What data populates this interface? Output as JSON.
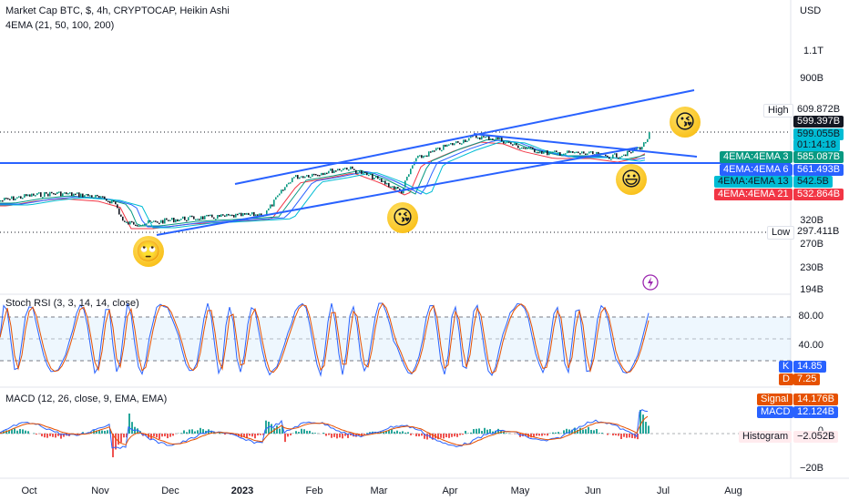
{
  "header": {
    "title": "Market Cap BTC, $, 4h, CRYPTOCAP, Heikin Ashi",
    "indicator": "4EMA (21, 50, 100, 200)",
    "currency": "USD"
  },
  "price_axis": {
    "ticks": [
      "1.1T",
      "900B",
      "320B",
      "270B",
      "230B",
      "194B"
    ],
    "high_label": "High",
    "high_value": "609.872B",
    "low_label": "Low",
    "low_value": "297.411B",
    "last_price": "599.397B",
    "last_price2": "599.055B",
    "countdown": "01:14:18",
    "ema_labels": [
      {
        "name": "4EMA:4EMA 3",
        "value": "585.087B",
        "color": "#089981"
      },
      {
        "name": "4EMA:4EMA 6",
        "value": "561.493B",
        "color": "#2962ff"
      },
      {
        "name": "4EMA:4EMA 13",
        "value": "542.5B",
        "color": "#00bcd4"
      },
      {
        "name": "4EMA:4EMA 21",
        "value": "532.864B",
        "color": "#f23645"
      }
    ]
  },
  "stoch": {
    "title": "Stoch RSI (3, 3, 14, 14, close)",
    "ticks": [
      "80.00",
      "40.00"
    ],
    "k_label": "K",
    "k_value": "14.85",
    "d_label": "D",
    "d_value": "7.25"
  },
  "macd": {
    "title": "MACD (12, 26, close, 9, EMA, EMA)",
    "signal_label": "Signal",
    "signal_value": "14.176B",
    "macd_label": "MACD",
    "macd_value": "12.124B",
    "hist_label": "Histogram",
    "hist_value": "−2.052B",
    "ticks": [
      "0",
      "−20B"
    ]
  },
  "time_axis": [
    "Oct",
    "Nov",
    "Dec",
    "2023",
    "Feb",
    "Mar",
    "Apr",
    "May",
    "Jun",
    "Jul",
    "Aug"
  ],
  "chart_data": {
    "type": "line",
    "title": "Market Cap BTC, $, 4h, CRYPTOCAP, Heikin Ashi",
    "x": [
      "Oct",
      "Nov",
      "Dec",
      "2023",
      "Feb",
      "Mar",
      "Apr",
      "May",
      "Jun",
      "Jul",
      "Aug"
    ],
    "series": [
      {
        "name": "Market Cap BTC",
        "values": [
          380,
          395,
          320,
          320,
          445,
          430,
          540,
          560,
          510,
          600,
          null
        ]
      }
    ],
    "annotations": [
      "High 609.872B",
      "Low 297.411B"
    ]
  },
  "colors": {
    "up": "#089981",
    "down": "#131722",
    "trend": "#2962ff",
    "k": "#2962ff",
    "d": "#e65100",
    "ema21": "#f23645"
  }
}
